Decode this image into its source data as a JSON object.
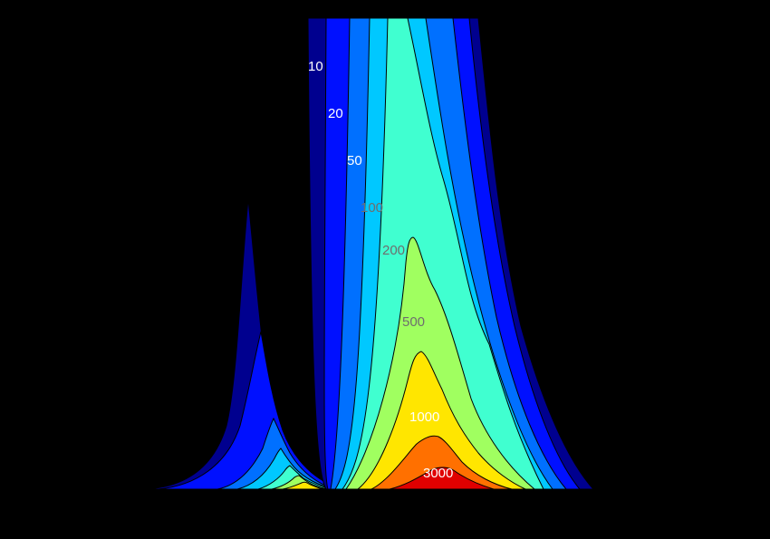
{
  "chart_data": {
    "type": "contour",
    "title": "",
    "xlabel": "",
    "ylabel": "",
    "background": "#000000",
    "line_color": "#000000",
    "levels": [
      10,
      20,
      50,
      100,
      200,
      500,
      1000,
      3000
    ],
    "bands": [
      {
        "level": 0,
        "color": "#00008f"
      },
      {
        "level": 10,
        "color": "#0010ff"
      },
      {
        "level": 20,
        "color": "#0070ff"
      },
      {
        "level": 50,
        "color": "#00c8ff"
      },
      {
        "level": 100,
        "color": "#40ffd0"
      },
      {
        "level": 200,
        "color": "#a0ff60"
      },
      {
        "level": 500,
        "color": "#ffe600"
      },
      {
        "level": 1000,
        "color": "#ff7000"
      },
      {
        "level": 3000,
        "color": "#e00000"
      }
    ],
    "contour_labels": [
      {
        "text": "10",
        "color": "#ffffff"
      },
      {
        "text": "20",
        "color": "#ffffff"
      },
      {
        "text": "50",
        "color": "#ffffff"
      },
      {
        "text": "100",
        "color": "#6e6e6e"
      },
      {
        "text": "200",
        "color": "#6e6e6e"
      },
      {
        "text": "500",
        "color": "#6e6e6e"
      },
      {
        "text": "1000",
        "color": "#ffffff"
      },
      {
        "text": "3000",
        "color": "#ffffff"
      }
    ]
  }
}
